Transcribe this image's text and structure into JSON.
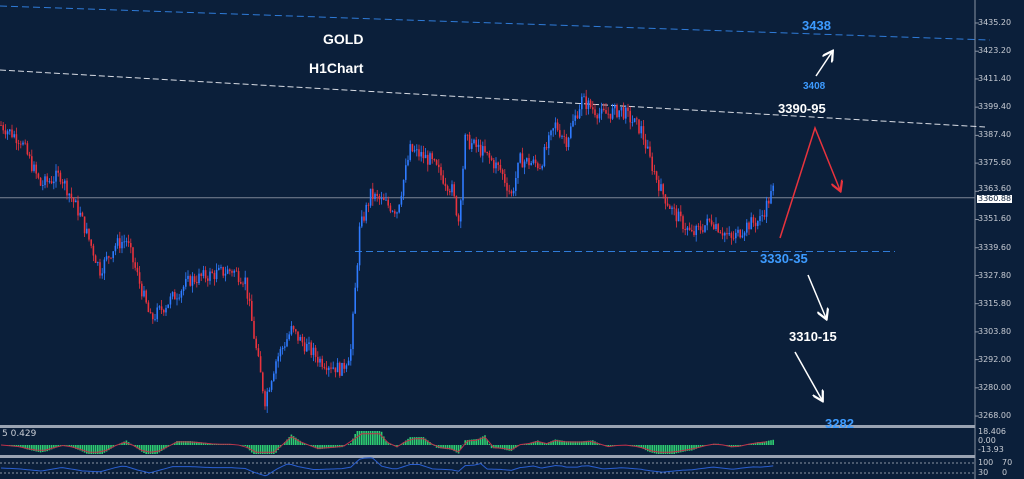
{
  "chart_data": {
    "type": "candlestick",
    "title": "GOLD",
    "subtitle": "H1Chart",
    "ylim": [
      3262,
      3445
    ],
    "y_ticks": [
      "3435.20",
      "3423.20",
      "3411.40",
      "3399.40",
      "3387.40",
      "3375.60",
      "3363.60",
      "3351.60",
      "3339.60",
      "3327.80",
      "3315.80",
      "3303.80",
      "3292.00",
      "3280.00",
      "3268.00"
    ],
    "current_price": "3360.88",
    "close_path": {
      "bar": [
        0,
        9,
        18,
        27,
        36,
        45,
        52,
        57,
        64,
        68,
        77,
        86,
        95,
        105,
        111,
        116,
        120,
        125,
        132,
        136,
        145,
        155,
        159,
        163,
        168,
        180,
        186,
        195,
        205,
        208,
        211,
        218,
        227,
        232,
        236,
        245,
        252,
        257,
        264,
        273,
        282,
        291,
        295,
        300,
        305,
        314,
        323,
        332,
        339,
        345,
        351
      ],
      "price": [
        3391.8,
        3385.4,
        3366.3,
        3370.5,
        3353.5,
        3330.1,
        3340.8,
        3342.9,
        3321.6,
        3308.9,
        3317.4,
        3325.9,
        3328.0,
        3330.1,
        3325.9,
        3296.1,
        3274.8,
        3291.8,
        3304.6,
        3300.3,
        3291.8,
        3287.6,
        3296.1,
        3347.1,
        3362.0,
        3355.6,
        3381.2,
        3376.9,
        3364.2,
        3351.4,
        3385.4,
        3381.2,
        3372.7,
        3362.0,
        3376.9,
        3374.8,
        3391.8,
        3385.4,
        3402.4,
        3396.1,
        3398.2,
        3389.7,
        3376.9,
        3364.2,
        3355.6,
        3345.0,
        3351.4,
        3342.9,
        3349.3,
        3351.4,
        3364.2
      ]
    },
    "candle_colors": {
      "up": "#2f7bff",
      "down": "#e8333d"
    },
    "annotations": [
      {
        "text": "3438",
        "color": "#3d9bff"
      },
      {
        "text": "3408",
        "color": "#3d9bff"
      },
      {
        "text": "3390-95",
        "color": "#ffffff"
      },
      {
        "text": "3330-35",
        "color": "#3d9bff"
      },
      {
        "text": "3310-15",
        "color": "#ffffff"
      },
      {
        "text": "3282",
        "color": "#3d9bff"
      }
    ],
    "support_level": 3338,
    "indicator_macd": {
      "label": "5 0.429",
      "ticks": [
        "18.406",
        "0.00",
        "-13.93"
      ],
      "hist_color": "#2ecc71",
      "signal_color": "#c0304a"
    },
    "indicator_rsi": {
      "ticks": [
        "100",
        "70",
        "30",
        "0"
      ],
      "line_color": "#2a5fd0"
    }
  }
}
